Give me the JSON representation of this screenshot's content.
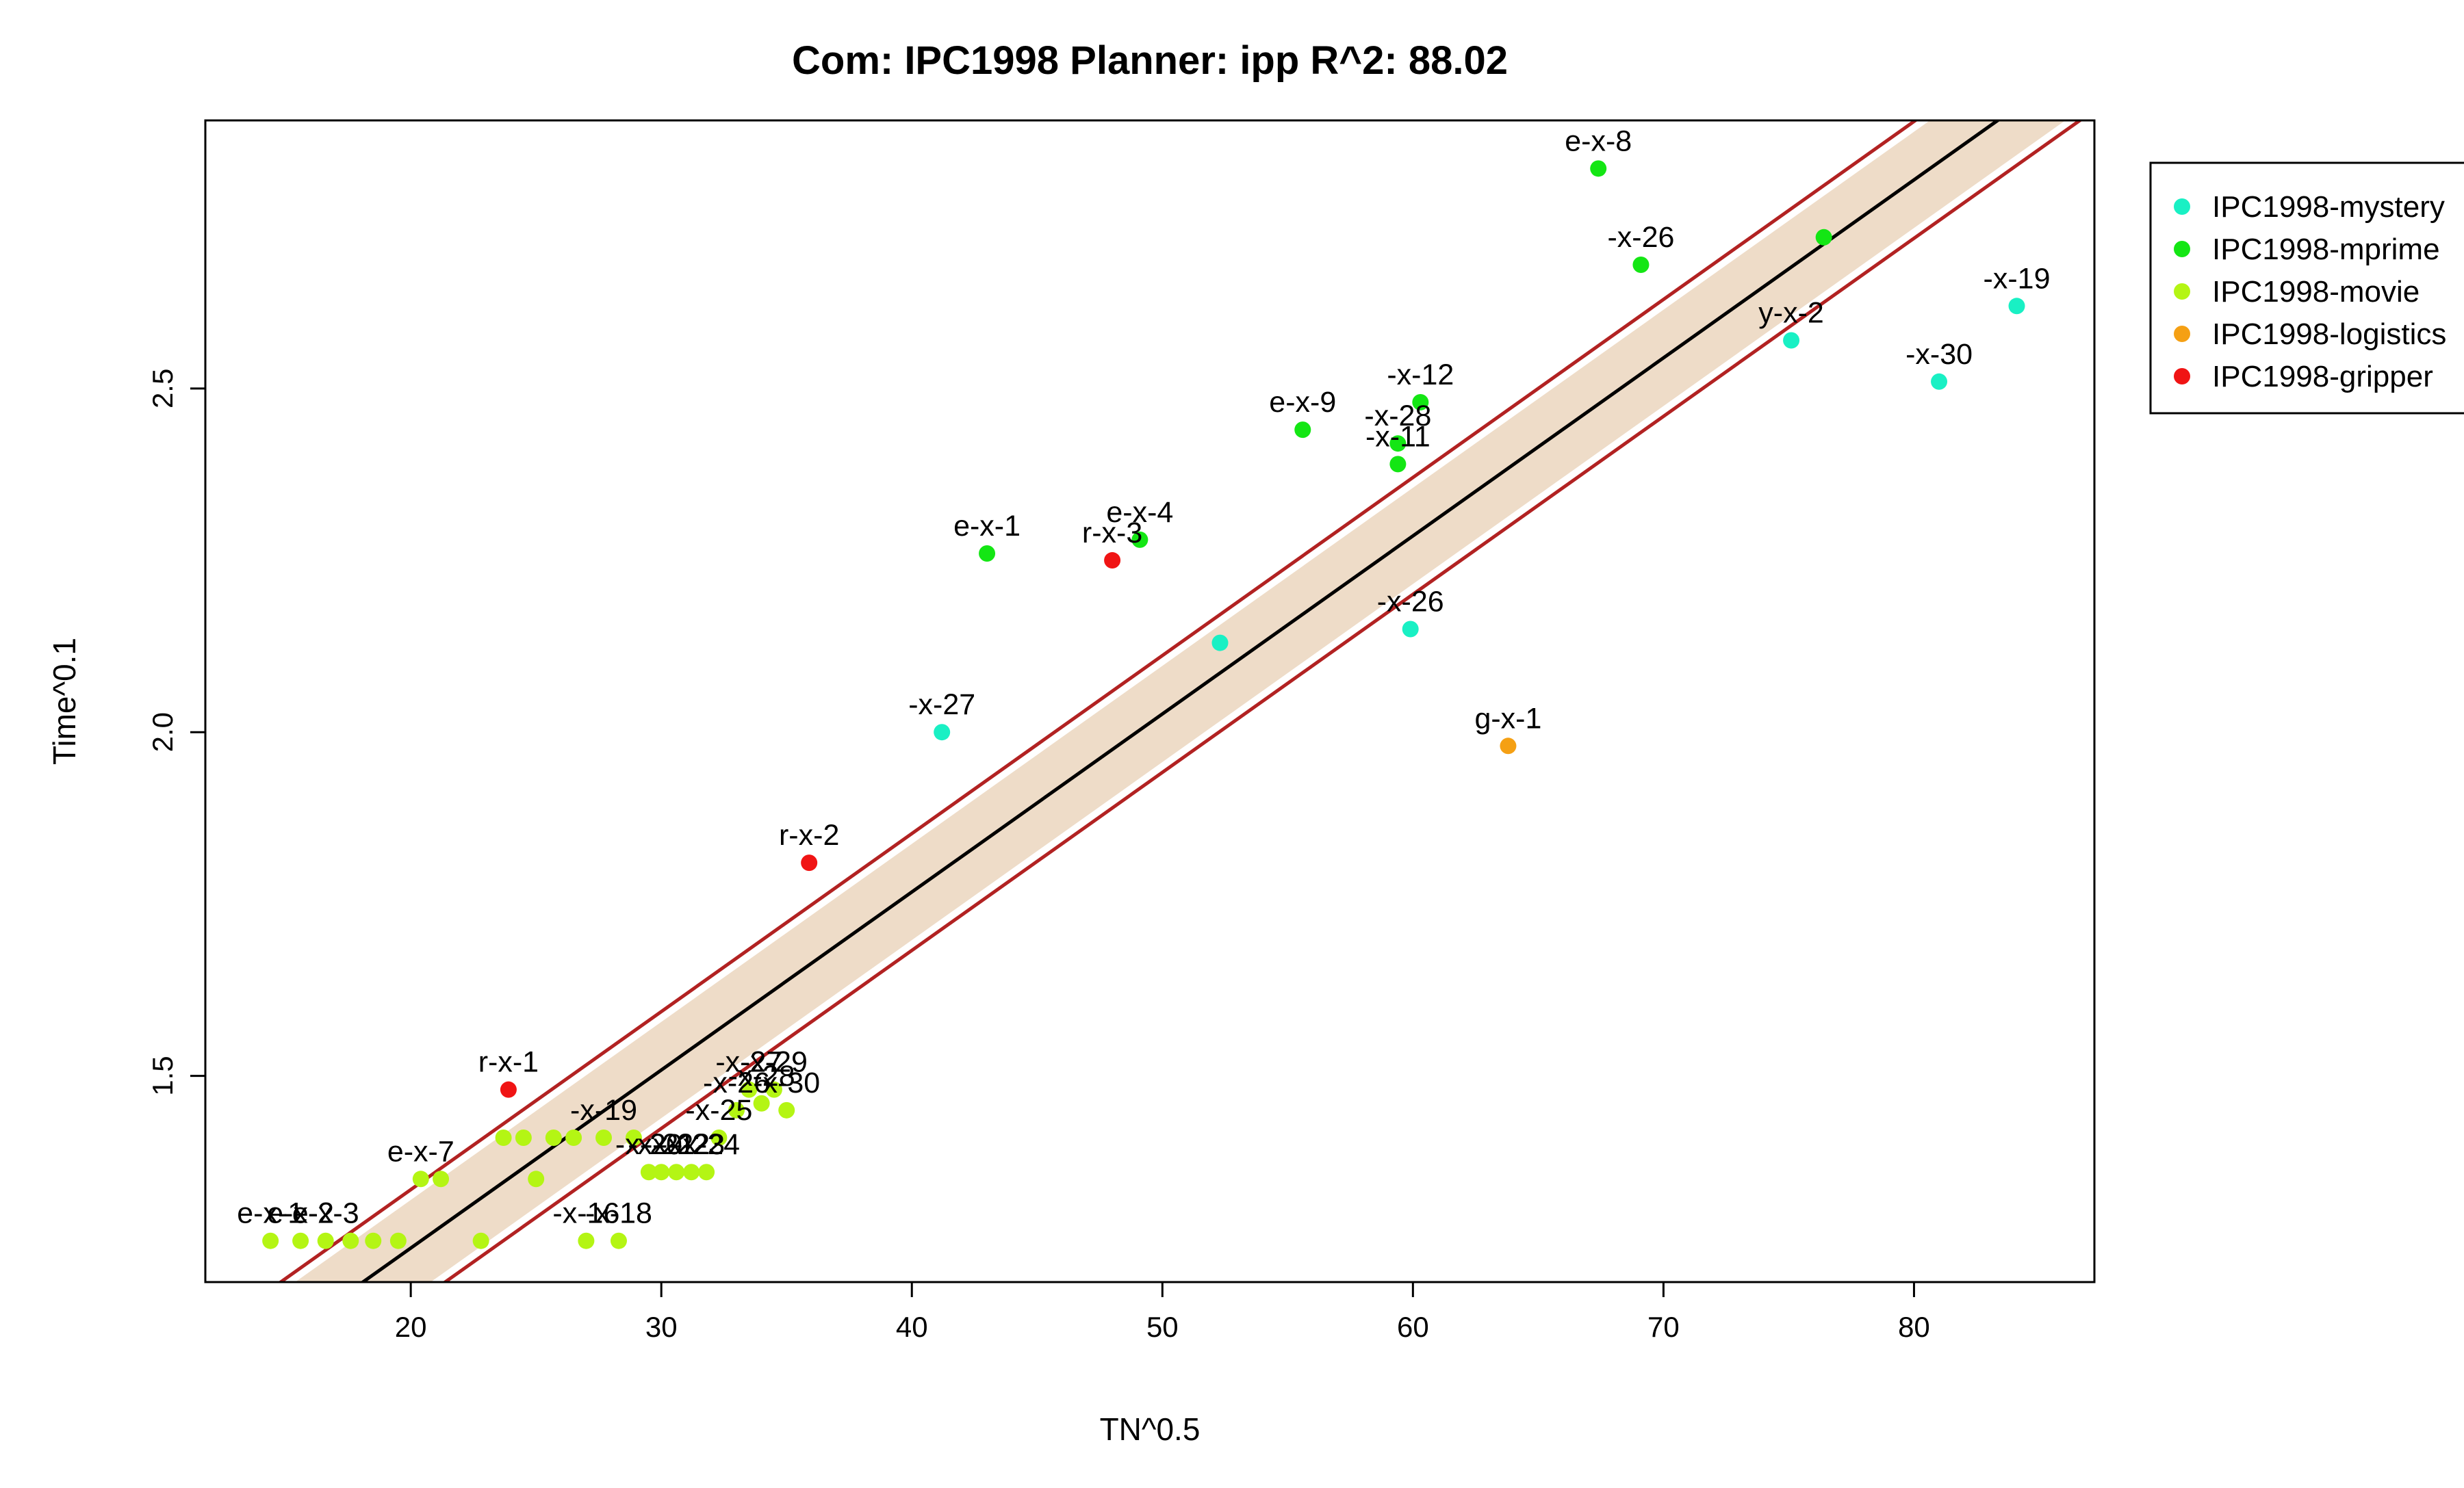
{
  "chart_data": {
    "type": "scatter",
    "title": "Com: IPC1998 Planner: ipp R^2: 88.02",
    "xlabel": "TN^0.5",
    "ylabel": "Time^0.1",
    "xlim": [
      11.8,
      87.2
    ],
    "ylim": [
      1.2,
      2.89
    ],
    "x_ticks": [
      20,
      30,
      40,
      50,
      60,
      70,
      80
    ],
    "y_ticks": [
      1.5,
      2.0,
      2.5
    ],
    "y_tick_labels": [
      "1.5",
      "2.0",
      "2.5"
    ],
    "grid": false,
    "legend_position": "right",
    "regression": {
      "line": [
        [
          15,
          1.12
        ],
        [
          87.2,
          2.99
        ]
      ],
      "inner_band_offset": 0.07,
      "outer_band_offset": 0.085,
      "line_color": "#000000",
      "band_edge_color": "#b22222",
      "band_fill_color": "#eedcc8"
    },
    "series": [
      {
        "name": "IPC1998-mystery",
        "color": "#19f0c4",
        "points": [
          {
            "x": 84.1,
            "y": 2.62,
            "label": "-x-19"
          },
          {
            "x": 75.1,
            "y": 2.57,
            "label": "y-x-2"
          },
          {
            "x": 81.0,
            "y": 2.51,
            "label": "-x-30"
          },
          {
            "x": 59.9,
            "y": 2.15,
            "label": "-x-26"
          },
          {
            "x": 52.3,
            "y": 2.13,
            "label": ""
          },
          {
            "x": 41.2,
            "y": 2.0,
            "label": "-x-27"
          }
        ]
      },
      {
        "name": "IPC1998-mprime",
        "color": "#14e614",
        "points": [
          {
            "x": 67.4,
            "y": 2.82,
            "label": "e-x-8"
          },
          {
            "x": 76.4,
            "y": 2.72,
            "label": ""
          },
          {
            "x": 69.1,
            "y": 2.68,
            "label": "-x-26"
          },
          {
            "x": 60.3,
            "y": 2.48,
            "label": "-x-12"
          },
          {
            "x": 55.6,
            "y": 2.44,
            "label": "e-x-9"
          },
          {
            "x": 59.4,
            "y": 2.42,
            "label": "-x-28"
          },
          {
            "x": 59.4,
            "y": 2.39,
            "label": "-x-11"
          },
          {
            "x": 43.0,
            "y": 2.26,
            "label": "e-x-1"
          },
          {
            "x": 49.1,
            "y": 2.28,
            "label": "e-x-4"
          }
        ]
      },
      {
        "name": "IPC1998-movie",
        "color": "#b4f514",
        "points": [
          {
            "x": 14.4,
            "y": 1.26,
            "label": "e-x-1"
          },
          {
            "x": 15.6,
            "y": 1.26,
            "label": "e-x-2"
          },
          {
            "x": 16.6,
            "y": 1.26,
            "label": "e-x-3"
          },
          {
            "x": 17.6,
            "y": 1.26,
            "label": ""
          },
          {
            "x": 18.5,
            "y": 1.26,
            "label": ""
          },
          {
            "x": 19.5,
            "y": 1.26,
            "label": ""
          },
          {
            "x": 22.8,
            "y": 1.26,
            "label": ""
          },
          {
            "x": 27.0,
            "y": 1.26,
            "label": "-x-16"
          },
          {
            "x": 28.3,
            "y": 1.26,
            "label": "-x-18"
          },
          {
            "x": 20.4,
            "y": 1.35,
            "label": "e-x-7"
          },
          {
            "x": 21.2,
            "y": 1.35,
            "label": ""
          },
          {
            "x": 25.0,
            "y": 1.35,
            "label": ""
          },
          {
            "x": 23.7,
            "y": 1.41,
            "label": ""
          },
          {
            "x": 24.5,
            "y": 1.41,
            "label": ""
          },
          {
            "x": 25.7,
            "y": 1.41,
            "label": ""
          },
          {
            "x": 26.5,
            "y": 1.41,
            "label": ""
          },
          {
            "x": 27.7,
            "y": 1.41,
            "label": "-x-19"
          },
          {
            "x": 28.9,
            "y": 1.41,
            "label": ""
          },
          {
            "x": 29.5,
            "y": 1.36,
            "label": "-x-20"
          },
          {
            "x": 30.0,
            "y": 1.36,
            "label": "-x-21"
          },
          {
            "x": 30.6,
            "y": 1.36,
            "label": "-x-22"
          },
          {
            "x": 31.2,
            "y": 1.36,
            "label": "-x-23"
          },
          {
            "x": 31.8,
            "y": 1.36,
            "label": "-x-24"
          },
          {
            "x": 32.3,
            "y": 1.41,
            "label": "-x-25"
          },
          {
            "x": 33.0,
            "y": 1.45,
            "label": "-x-26"
          },
          {
            "x": 33.5,
            "y": 1.48,
            "label": "-x-27"
          },
          {
            "x": 34.0,
            "y": 1.46,
            "label": "-x-28"
          },
          {
            "x": 34.5,
            "y": 1.48,
            "label": "-x-29"
          },
          {
            "x": 35.0,
            "y": 1.45,
            "label": "-x-30"
          }
        ]
      },
      {
        "name": "IPC1998-logistics",
        "color": "#f5a014",
        "points": [
          {
            "x": 63.8,
            "y": 1.98,
            "label": "g-x-1"
          }
        ]
      },
      {
        "name": "IPC1998-gripper",
        "color": "#f01414",
        "points": [
          {
            "x": 23.9,
            "y": 1.48,
            "label": "r-x-1"
          },
          {
            "x": 35.9,
            "y": 1.81,
            "label": "r-x-2"
          },
          {
            "x": 48.0,
            "y": 2.25,
            "label": "r-x-3"
          }
        ]
      }
    ]
  }
}
